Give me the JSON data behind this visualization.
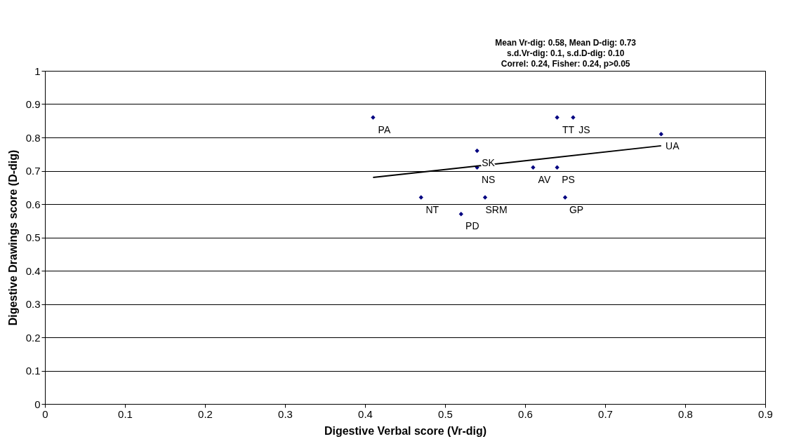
{
  "chart_data": {
    "type": "scatter",
    "xlabel": "Digestive Verbal score (Vr-dig)",
    "ylabel": "Digestive Drawings score (D-dig)",
    "xlim": [
      0,
      0.9
    ],
    "xticks": [
      0,
      0.1,
      0.2,
      0.3,
      0.4,
      0.5,
      0.6,
      0.7,
      0.8,
      0.9
    ],
    "ylim": [
      0,
      1
    ],
    "yticks": [
      0,
      0.1,
      0.2,
      0.3,
      0.4,
      0.5,
      0.6,
      0.7,
      0.8,
      0.9,
      1
    ],
    "grid": "y",
    "series": [
      {
        "color": "#000080",
        "marker": "diamond",
        "x": [
          0.41,
          0.64,
          0.66,
          0.77,
          0.54,
          0.54,
          0.61,
          0.64,
          0.47,
          0.55,
          0.65,
          0.52
        ],
        "values": [
          0.86,
          0.86,
          0.86,
          0.81,
          0.76,
          0.71,
          0.71,
          0.71,
          0.62,
          0.62,
          0.62,
          0.57
        ]
      },
      {
        "type": "line",
        "color": "#000000",
        "x": [
          0.41,
          0.77
        ],
        "values": [
          0.68,
          0.775
        ]
      }
    ],
    "annotations": [
      "Mean Vr-dig: 0.58, Mean D-dig: 0.73",
      "s.d.Vr-dig: 0.1, s.d.D-dig: 0.10",
      "Correl: 0.24, Fisher: 0.24, p>0.05",
      {
        "text": "PA",
        "x": 0.41,
        "y": 0.86
      },
      {
        "text": "TT",
        "x": 0.64,
        "y": 0.86
      },
      {
        "text": "JS",
        "x": 0.66,
        "y": 0.86
      },
      {
        "text": "UA",
        "x": 0.77,
        "y": 0.81
      },
      {
        "text": "SK",
        "x": 0.54,
        "y": 0.76
      },
      {
        "text": "NS",
        "x": 0.54,
        "y": 0.71
      },
      {
        "text": "AV",
        "x": 0.61,
        "y": 0.71
      },
      {
        "text": "PS",
        "x": 0.64,
        "y": 0.71
      },
      {
        "text": "NT",
        "x": 0.47,
        "y": 0.62
      },
      {
        "text": "SRM",
        "x": 0.55,
        "y": 0.62
      },
      {
        "text": "GP",
        "x": 0.65,
        "y": 0.62
      },
      {
        "text": "PD",
        "x": 0.52,
        "y": 0.57
      }
    ]
  }
}
